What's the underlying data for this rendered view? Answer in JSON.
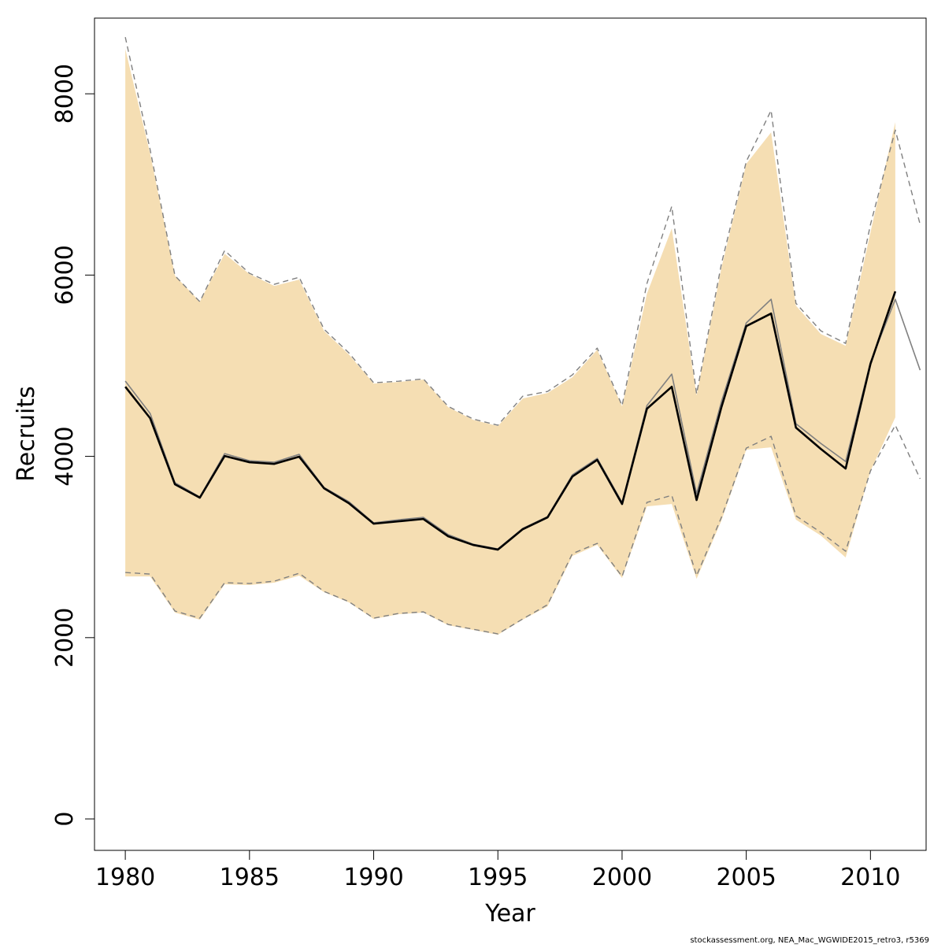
{
  "chart_data": {
    "type": "line",
    "x_label": "Year",
    "y_label": "Recruits",
    "footer": "stockassessment.org, NEA_Mac_WGWIDE2015_retro3, r5369",
    "x": [
      1980,
      1981,
      1982,
      1983,
      1984,
      1985,
      1986,
      1987,
      1988,
      1989,
      1990,
      1991,
      1992,
      1993,
      1994,
      1995,
      1996,
      1997,
      1998,
      1999,
      2000,
      2001,
      2002,
      2003,
      2004,
      2005,
      2006,
      2007,
      2008,
      2009,
      2010,
      2011,
      2012
    ],
    "xlim": [
      1978.76,
      2012.24
    ],
    "xticks": [
      1980,
      1985,
      1990,
      1995,
      2000,
      2005,
      2010
    ],
    "ylim": [
      -347,
      8835
    ],
    "yticks": [
      0,
      2000,
      4000,
      6000,
      8000
    ],
    "band": {
      "color": "#f5deb3",
      "upper": [
        8495,
        7340,
        5993,
        5707,
        6236,
        6011,
        5880,
        5950,
        5385,
        5125,
        4803,
        4821,
        4847,
        4543,
        4404,
        4334,
        4638,
        4699,
        4873,
        5177,
        4551,
        5793,
        6514,
        4673,
        6080,
        7227,
        7574,
        5663,
        5350,
        5220,
        6471,
        7687,
        null
      ],
      "lower": [
        2675,
        2675,
        2276,
        2198,
        2588,
        2580,
        2606,
        2684,
        2502,
        2389,
        2206,
        2258,
        2276,
        2137,
        2085,
        2032,
        2198,
        2345,
        2901,
        3023,
        2658,
        3448,
        3474,
        2649,
        3292,
        4074,
        4100,
        3301,
        3127,
        2884,
        3839,
        4430,
        null
      ]
    },
    "series": [
      {
        "color": "#808080",
        "dash": true,
        "width": 1.4,
        "values": [
          8625,
          7383,
          5993,
          5707,
          6271,
          6019,
          5898,
          5976,
          5403,
          5142,
          4812,
          4829,
          4855,
          4551,
          4412,
          4343,
          4664,
          4716,
          4899,
          5194,
          4560,
          5906,
          6758,
          4690,
          6124,
          7253,
          7817,
          5689,
          5385,
          5246,
          6558,
          7600,
          6558
        ]
      },
      {
        "color": "#808080",
        "dash": true,
        "width": 1.4,
        "values": [
          2719,
          2701,
          2293,
          2215,
          2606,
          2597,
          2623,
          2710,
          2510,
          2397,
          2215,
          2267,
          2284,
          2145,
          2093,
          2041,
          2206,
          2363,
          2927,
          3040,
          2675,
          3492,
          3570,
          2684,
          3327,
          4091,
          4221,
          3344,
          3162,
          2953,
          3839,
          4343,
          3752
        ]
      },
      {
        "color": "#808080",
        "dash": false,
        "width": 1.6,
        "values": [
          4830,
          4473,
          3709,
          3552,
          4030,
          3952,
          3935,
          4022,
          3657,
          3500,
          3266,
          3300,
          3327,
          3136,
          3031,
          2979,
          3205,
          3335,
          3796,
          3978,
          3492,
          4560,
          4907,
          3587,
          4603,
          5472,
          5733,
          4360,
          4143,
          3943,
          5038,
          5733,
          4951
        ]
      },
      {
        "color": "#000000",
        "dash": false,
        "width": 2.6,
        "values": [
          4768,
          4421,
          3691,
          3544,
          4004,
          3935,
          3917,
          3996,
          3648,
          3483,
          3257,
          3283,
          3309,
          3118,
          3023,
          2971,
          3196,
          3327,
          3778,
          3961,
          3474,
          4525,
          4768,
          3518,
          4543,
          5437,
          5576,
          4317,
          4082,
          3865,
          5020,
          5820,
          null
        ]
      }
    ]
  }
}
